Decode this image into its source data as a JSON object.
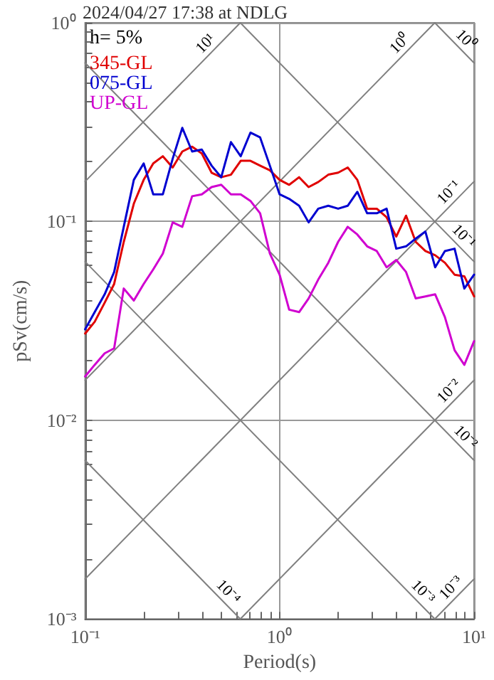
{
  "chart_data": {
    "type": "line",
    "title": "2024/04/27 17:38 at NDLG",
    "xlabel": "Period(s)",
    "ylabel": "pSv(cm/s)",
    "log": "xy",
    "grid": true,
    "legend": "top left",
    "xlim": [
      0.1,
      10
    ],
    "ylim": [
      0.001,
      1
    ],
    "xticks": [
      {
        "value": 0.1,
        "label": "10⁻¹"
      },
      {
        "value": 0.2,
        "label": null
      },
      {
        "value": 0.3,
        "label": null
      },
      {
        "value": 0.4,
        "label": null
      },
      {
        "value": 0.5,
        "label": null
      },
      {
        "value": 0.6,
        "label": null
      },
      {
        "value": 0.7,
        "label": null
      },
      {
        "value": 0.8,
        "label": null
      },
      {
        "value": 0.9,
        "label": null
      },
      {
        "value": 1,
        "label": "10⁰"
      },
      {
        "value": 2,
        "label": null
      },
      {
        "value": 3,
        "label": null
      },
      {
        "value": 4,
        "label": null
      },
      {
        "value": 5,
        "label": null
      },
      {
        "value": 6,
        "label": null
      },
      {
        "value": 7,
        "label": null
      },
      {
        "value": 8,
        "label": null
      },
      {
        "value": 9,
        "label": null
      },
      {
        "value": 10,
        "label": "10¹"
      }
    ],
    "yticks": [
      {
        "value": 0.001,
        "label": "10⁻³"
      },
      {
        "value": 0.002,
        "label": null
      },
      {
        "value": 0.003,
        "label": null
      },
      {
        "value": 0.004,
        "label": null
      },
      {
        "value": 0.005,
        "label": null
      },
      {
        "value": 0.006,
        "label": null
      },
      {
        "value": 0.007,
        "label": null
      },
      {
        "value": 0.008,
        "label": null
      },
      {
        "value": 0.009,
        "label": null
      },
      {
        "value": 0.01,
        "label": "10⁻²"
      },
      {
        "value": 0.02,
        "label": null
      },
      {
        "value": 0.03,
        "label": null
      },
      {
        "value": 0.04,
        "label": null
      },
      {
        "value": 0.05,
        "label": null
      },
      {
        "value": 0.06,
        "label": null
      },
      {
        "value": 0.07,
        "label": null
      },
      {
        "value": 0.08,
        "label": null
      },
      {
        "value": 0.09,
        "label": null
      },
      {
        "value": 0.1,
        "label": "10⁻¹"
      },
      {
        "value": 0.2,
        "label": null
      },
      {
        "value": 0.3,
        "label": null
      },
      {
        "value": 0.4,
        "label": null
      },
      {
        "value": 0.5,
        "label": null
      },
      {
        "value": 0.6,
        "label": null
      },
      {
        "value": 0.7,
        "label": null
      },
      {
        "value": 0.8,
        "label": null
      },
      {
        "value": 0.9,
        "label": null
      },
      {
        "value": 1,
        "label": "10⁰"
      }
    ],
    "x": [
      0.1,
      0.112,
      0.126,
      0.141,
      0.158,
      0.178,
      0.2,
      0.224,
      0.251,
      0.282,
      0.316,
      0.355,
      0.398,
      0.447,
      0.501,
      0.562,
      0.631,
      0.708,
      0.794,
      0.891,
      1,
      1.12,
      1.26,
      1.41,
      1.58,
      1.78,
      2,
      2.24,
      2.51,
      2.82,
      3.16,
      3.55,
      3.98,
      4.47,
      5.01,
      5.62,
      6.31,
      7.08,
      7.94,
      8.91,
      10
    ],
    "series": [
      {
        "name": "345-GL",
        "color": "#e00000",
        "values": [
          0.0273,
          0.0313,
          0.039,
          0.0485,
          0.079,
          0.123,
          0.162,
          0.196,
          0.213,
          0.187,
          0.225,
          0.238,
          0.22,
          0.176,
          0.167,
          0.172,
          0.202,
          0.202,
          0.191,
          0.181,
          0.162,
          0.153,
          0.167,
          0.149,
          0.158,
          0.172,
          0.176,
          0.187,
          0.162,
          0.116,
          0.116,
          0.105,
          0.084,
          0.107,
          0.079,
          0.071,
          0.0676,
          0.062,
          0.054,
          0.053,
          0.042
        ]
      },
      {
        "name": "075-GL",
        "color": "#0000d0",
        "values": [
          0.0287,
          0.035,
          0.043,
          0.0557,
          0.094,
          0.162,
          0.196,
          0.137,
          0.137,
          0.207,
          0.296,
          0.225,
          0.23,
          0.191,
          0.167,
          0.251,
          0.213,
          0.28,
          0.265,
          0.191,
          0.137,
          0.13,
          0.12,
          0.099,
          0.116,
          0.12,
          0.116,
          0.12,
          0.141,
          0.11,
          0.11,
          0.116,
          0.073,
          0.075,
          0.082,
          0.089,
          0.0588,
          0.071,
          0.073,
          0.046,
          0.054
        ]
      },
      {
        "name": "UP-GL",
        "color": "#d000d0",
        "values": [
          0.0166,
          0.019,
          0.0217,
          0.023,
          0.046,
          0.04,
          0.0485,
          0.0574,
          0.069,
          0.099,
          0.094,
          0.134,
          0.137,
          0.149,
          0.153,
          0.137,
          0.137,
          0.127,
          0.11,
          0.069,
          0.054,
          0.036,
          0.035,
          0.041,
          0.051,
          0.062,
          0.079,
          0.094,
          0.086,
          0.075,
          0.071,
          0.0588,
          0.064,
          0.0557,
          0.041,
          0.042,
          0.043,
          0.033,
          0.0225,
          0.019,
          0.025
        ]
      },
      {
        "color": "#808080",
        "x": [
          0.1,
          0.628
        ],
        "values": [
          0.159,
          1
        ]
      },
      {
        "color": "#808080",
        "x": [
          0.1,
          6.28
        ],
        "values": [
          0.0159,
          1
        ]
      },
      {
        "color": "#808080",
        "x": [
          0.1,
          10
        ],
        "values": [
          0.00159,
          0.159
        ]
      },
      {
        "color": "#808080",
        "x": [
          0.628,
          10
        ],
        "values": [
          0.001,
          0.0159
        ]
      },
      {
        "color": "#808080",
        "x": [
          6.28,
          10
        ],
        "values": [
          0.001,
          0.00159
        ]
      },
      {
        "color": "#808080",
        "x": [
          6.28,
          10
        ],
        "values": [
          1,
          0.628
        ]
      },
      {
        "color": "#808080",
        "x": [
          0.628,
          10
        ],
        "values": [
          1,
          0.0628
        ]
      },
      {
        "color": "#808080",
        "x": [
          0.1,
          10
        ],
        "values": [
          0.628,
          0.00628
        ]
      },
      {
        "color": "#808080",
        "x": [
          0.1,
          6.28
        ],
        "values": [
          0.0628,
          0.001
        ]
      },
      {
        "color": "#808080",
        "x": [
          0.1,
          0.628
        ],
        "values": [
          0.00628,
          0.001
        ]
      }
    ],
    "annotations": [
      "h= 5%",
      {
        "text": "10¹",
        "x": 0.454,
        "y": 0.723
      },
      {
        "text": "10⁰",
        "x": 4.54,
        "y": 0.723
      },
      {
        "text": "10⁰",
        "x": 8.3,
        "y": 0.757
      },
      {
        "text": "10⁻¹",
        "x": 8.1,
        "y": 0.129
      },
      {
        "text": "10⁻¹",
        "x": 8.1,
        "y": 0.0776
      },
      {
        "text": "10⁻²",
        "x": 8.1,
        "y": 0.0129
      },
      {
        "text": "10⁻²",
        "x": 8.3,
        "y": 0.00757
      },
      {
        "text": "10⁻³",
        "x": 8.3,
        "y": 0.00132
      },
      {
        "text": "10⁻³",
        "x": 5,
        "y": 0.00126
      },
      {
        "text": "10⁻⁴",
        "x": 0.5,
        "y": 0.00126
      }
    ]
  }
}
